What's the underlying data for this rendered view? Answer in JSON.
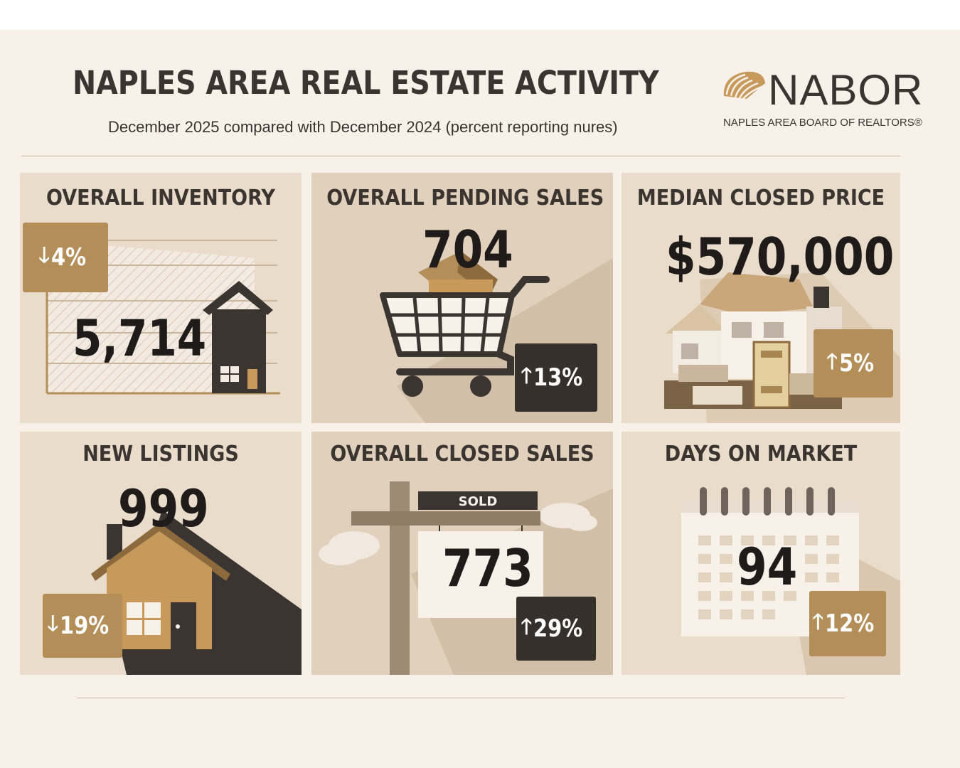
{
  "header": {
    "title": "NAPLES AREA REAL ESTATE ACTIVITY",
    "subtitle": "December 2025 compared with December 2024 (percent reporting nures)"
  },
  "logo": {
    "name": "NABOR",
    "tagline": "NAPLES AREA BOARD OF REALTORS®",
    "icon": "shell-icon"
  },
  "colors": {
    "background": "#f7f1ea",
    "panel": "#eadccb",
    "gold": "#b38e58",
    "dark": "#36302c",
    "text": "#3b3532"
  },
  "panels": [
    {
      "title": "OVERALL INVENTORY",
      "value": "5,714",
      "change": "4%",
      "direction": "down",
      "badge_color": "gold",
      "icon": "house-icon"
    },
    {
      "title": "OVERALL PENDING SALES",
      "value": "704",
      "change": "13%",
      "direction": "up",
      "badge_color": "black",
      "icon": "shopping-cart-icon"
    },
    {
      "title": "MEDIAN CLOSED PRICE",
      "value": "$570,000",
      "change": "5%",
      "direction": "up",
      "badge_color": "gold",
      "icon": "house-money-icon"
    },
    {
      "title": "NEW LISTINGS",
      "value": "999",
      "change": "19%",
      "direction": "down",
      "badge_color": "gold",
      "icon": "house-icon"
    },
    {
      "title": "OVERALL CLOSED SALES",
      "value": "773",
      "change": "29%",
      "direction": "up",
      "badge_color": "black",
      "icon": "sold-sign-icon",
      "sign_label": "SOLD"
    },
    {
      "title": "DAYS ON MARKET",
      "value": "94",
      "change": "12%",
      "direction": "up",
      "badge_color": "gold",
      "icon": "calendar-icon"
    }
  ],
  "arrows": {
    "up": "🡑",
    "down": "🡓"
  }
}
